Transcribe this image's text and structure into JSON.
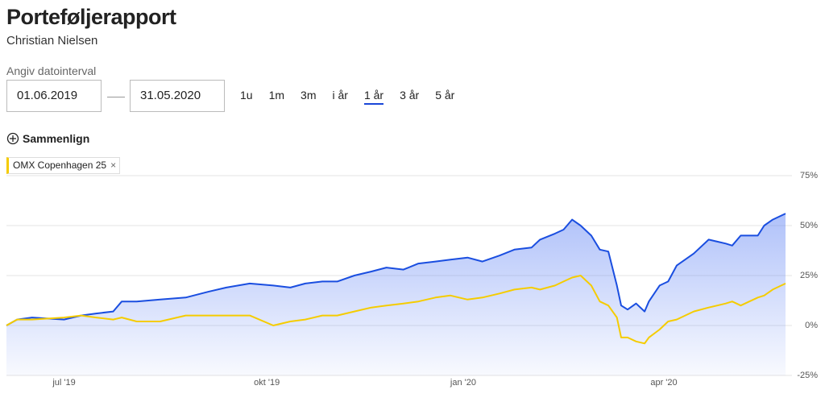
{
  "header": {
    "title": "Porteføljerapport",
    "subtitle": "Christian Nielsen"
  },
  "date_range": {
    "label": "Angiv datointerval",
    "from": "01.06.2019",
    "to": "31.05.2020"
  },
  "periods": [
    "1u",
    "1m",
    "3m",
    "i år",
    "1 år",
    "3 år",
    "5 år"
  ],
  "active_period": 4,
  "compare": "Sammenlign",
  "chart_data": {
    "type": "line",
    "x": [
      0,
      5,
      12,
      27,
      35,
      42,
      50,
      54,
      61,
      72,
      84,
      95,
      103,
      114,
      125,
      133,
      140,
      148,
      155,
      163,
      171,
      178,
      186,
      193,
      201,
      208,
      216,
      223,
      231,
      238,
      246,
      250,
      257,
      261,
      265,
      269,
      274,
      278,
      282,
      286,
      288,
      291,
      295,
      299,
      301,
      306,
      310,
      314,
      322,
      329,
      337,
      340,
      344,
      352,
      355,
      359,
      365
    ],
    "xlim": [
      0,
      365
    ],
    "xticks": [
      {
        "value": 27,
        "label": "jul '19"
      },
      {
        "value": 122,
        "label": "okt '19"
      },
      {
        "value": 214,
        "label": "jan '20"
      },
      {
        "value": 308,
        "label": "apr '20"
      }
    ],
    "ylim": [
      -25,
      75
    ],
    "yticks": [
      {
        "value": -25,
        "label": "-25%"
      },
      {
        "value": 0,
        "label": "0%"
      },
      {
        "value": 25,
        "label": "25%"
      },
      {
        "value": 50,
        "label": "50%"
      },
      {
        "value": 75,
        "label": "75%"
      }
    ],
    "grid": true,
    "y_axis_side": "right",
    "series": [
      {
        "color": "#1a4ee0",
        "area": true,
        "values": [
          0,
          3,
          4,
          3,
          5,
          6,
          7,
          12,
          12,
          13,
          14,
          17,
          19,
          21,
          20,
          19,
          21,
          22,
          22,
          25,
          27,
          29,
          28,
          31,
          32,
          33,
          34,
          32,
          35,
          38,
          39,
          43,
          46,
          48,
          53,
          50,
          45,
          38,
          37,
          20,
          10,
          8,
          11,
          7,
          12,
          20,
          22,
          30,
          36,
          43,
          41,
          40,
          45,
          45,
          50,
          53,
          56
        ]
      },
      {
        "name": "OMX Copenhagen 25",
        "color": "#f5cc00",
        "values": [
          0,
          3,
          3,
          4,
          5,
          4,
          3,
          4,
          2,
          2,
          5,
          5,
          5,
          5,
          0,
          2,
          3,
          5,
          5,
          7,
          9,
          10,
          11,
          12,
          14,
          15,
          13,
          14,
          16,
          18,
          19,
          18,
          20,
          22,
          24,
          25,
          20,
          12,
          10,
          4,
          -6,
          -6,
          -8,
          -9,
          -6,
          -2,
          2,
          3,
          7,
          9,
          11,
          12,
          10,
          14,
          15,
          18,
          21
        ]
      }
    ]
  }
}
